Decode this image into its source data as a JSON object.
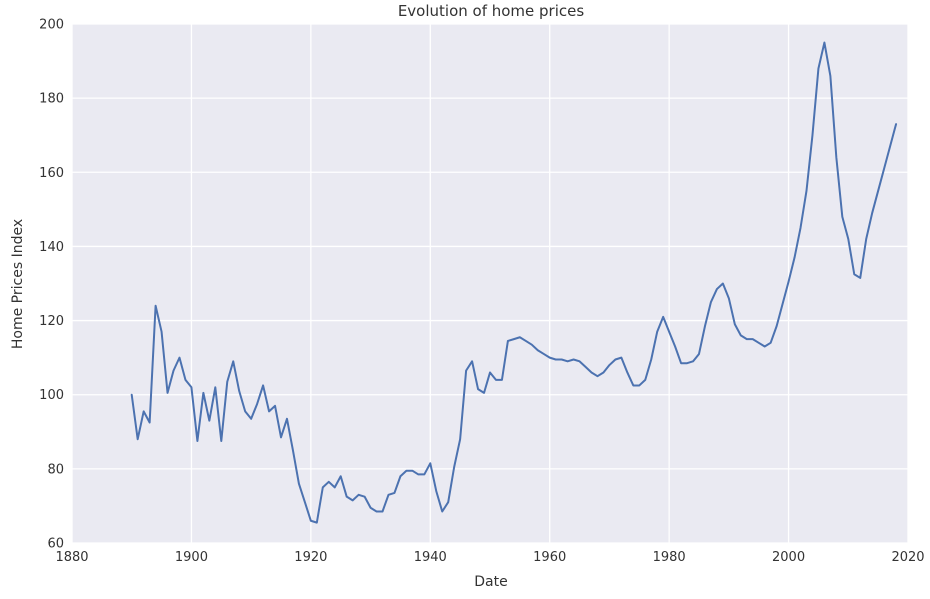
{
  "chart_data": {
    "type": "line",
    "title": "Evolution of home prices",
    "xlabel": "Date",
    "ylabel": "Home Prices Index",
    "xlim": [
      1880,
      2020
    ],
    "ylim": [
      60,
      200
    ],
    "xticks": [
      1880,
      1900,
      1920,
      1940,
      1960,
      1980,
      2000,
      2020
    ],
    "yticks": [
      60,
      80,
      100,
      120,
      140,
      160,
      180,
      200
    ],
    "grid": true,
    "background": "#EAEAF2",
    "line_color": "#4C72B0",
    "series": [
      {
        "x": [
          1890,
          1891,
          1892,
          1893,
          1894,
          1895,
          1896,
          1897,
          1898,
          1899,
          1900,
          1901,
          1902,
          1903,
          1904,
          1905,
          1906,
          1907,
          1908,
          1909,
          1910,
          1911,
          1912,
          1913,
          1914,
          1915,
          1916,
          1917,
          1918,
          1919,
          1920,
          1921,
          1922,
          1923,
          1924,
          1925,
          1926,
          1927,
          1928,
          1929,
          1930,
          1931,
          1932,
          1933,
          1934,
          1935,
          1936,
          1937,
          1938,
          1939,
          1940,
          1941,
          1942,
          1943,
          1944,
          1945,
          1946,
          1947,
          1948,
          1949,
          1950,
          1951,
          1952,
          1953,
          1954,
          1955,
          1956,
          1957,
          1958,
          1959,
          1960,
          1961,
          1962,
          1963,
          1964,
          1965,
          1966,
          1967,
          1968,
          1969,
          1970,
          1971,
          1972,
          1973,
          1974,
          1975,
          1976,
          1977,
          1978,
          1979,
          1980,
          1981,
          1982,
          1983,
          1984,
          1985,
          1986,
          1987,
          1988,
          1989,
          1990,
          1991,
          1992,
          1993,
          1994,
          1995,
          1996,
          1997,
          1998,
          1999,
          2000,
          2001,
          2002,
          2003,
          2004,
          2005,
          2006,
          2007,
          2008,
          2009,
          2010,
          2011,
          2012,
          2013,
          2014,
          2015,
          2016,
          2017,
          2018
        ],
        "values": [
          100,
          88,
          95.5,
          92.5,
          124,
          117,
          100.5,
          106.5,
          110,
          104,
          102,
          87.5,
          100.5,
          93,
          102,
          87.5,
          103.5,
          109,
          101,
          95.5,
          93.5,
          97.5,
          102.5,
          95.5,
          97,
          88.5,
          93.5,
          85,
          76,
          71,
          66,
          65.5,
          75,
          76.5,
          75,
          78,
          72.5,
          71.5,
          73,
          72.5,
          69.5,
          68.5,
          68.5,
          73,
          73.5,
          78,
          79.5,
          79.5,
          78.5,
          78.5,
          81.5,
          74,
          68.5,
          71,
          80.5,
          88,
          106.5,
          109,
          101.5,
          100.5,
          106,
          104,
          104,
          114.5,
          115,
          115.5,
          114.5,
          113.5,
          112,
          111,
          110,
          109.5,
          109.5,
          109,
          109.5,
          109,
          107.5,
          106,
          105,
          106,
          108,
          109.5,
          110,
          106,
          102.5,
          102.5,
          104,
          109.5,
          117,
          121,
          117,
          113,
          108.5,
          108.5,
          109,
          111,
          118.5,
          125,
          128.5,
          130,
          126,
          119,
          116,
          115,
          115,
          114,
          113,
          114,
          118.5,
          124.5,
          130.5,
          137,
          145,
          155,
          170,
          188,
          195,
          186,
          164,
          148,
          142,
          132.5,
          131.5,
          142,
          149,
          155,
          161,
          167,
          173
        ]
      }
    ]
  }
}
